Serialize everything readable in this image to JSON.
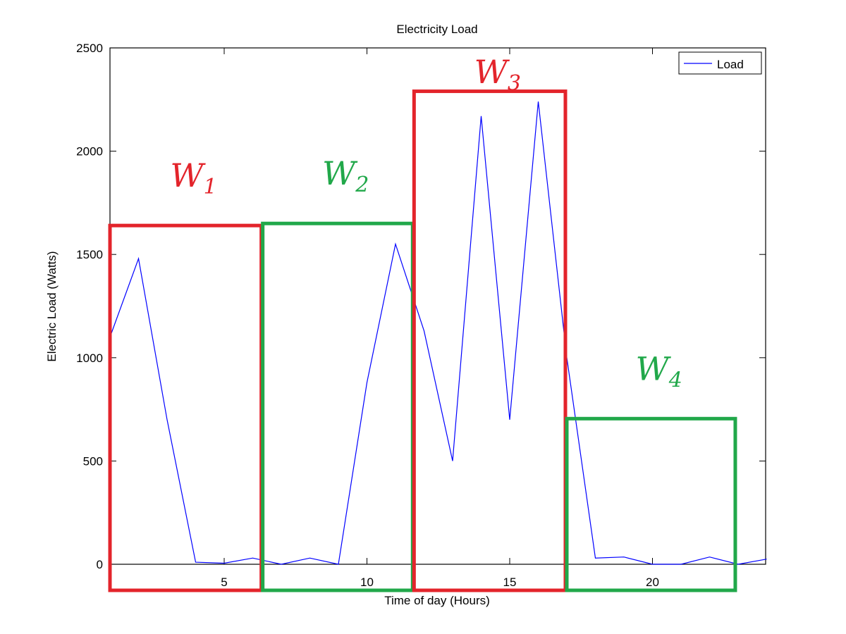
{
  "chart_data": {
    "type": "line",
    "title": "Electricity Load",
    "xlabel": "Time of day (Hours)",
    "ylabel": "Electric Load (Watts)",
    "xlim": [
      1,
      24
    ],
    "ylim": [
      0,
      2500
    ],
    "xticks": [
      5,
      10,
      15,
      20
    ],
    "yticks": [
      0,
      500,
      1000,
      1500,
      2000,
      2500
    ],
    "legend": {
      "position": "top-right",
      "entries": [
        "Load"
      ]
    },
    "series": [
      {
        "name": "Load",
        "color": "#0000ff",
        "x": [
          1,
          2,
          3,
          4,
          5,
          6,
          7,
          8,
          9,
          10,
          11,
          12,
          13,
          14,
          15,
          16,
          17,
          18,
          19,
          20,
          21,
          22,
          23,
          24
        ],
        "y": [
          1100,
          1480,
          700,
          10,
          5,
          30,
          0,
          30,
          0,
          880,
          1550,
          1130,
          500,
          2170,
          700,
          2240,
          1000,
          30,
          35,
          0,
          0,
          35,
          0,
          25
        ]
      }
    ],
    "annotations": [
      {
        "label": "W",
        "sub": "1",
        "color": "#e3242b",
        "x_range": [
          1,
          6.3
        ],
        "y_top": 1640
      },
      {
        "label": "W",
        "sub": "2",
        "color": "#21a84a",
        "x_range": [
          6.35,
          11.6
        ],
        "y_top": 1650
      },
      {
        "label": "W",
        "sub": "3",
        "color": "#e3242b",
        "x_range": [
          11.65,
          16.95
        ],
        "y_top": 2290
      },
      {
        "label": "W",
        "sub": "4",
        "color": "#21a84a",
        "x_range": [
          17.0,
          22.9
        ],
        "y_top": 705
      }
    ]
  }
}
